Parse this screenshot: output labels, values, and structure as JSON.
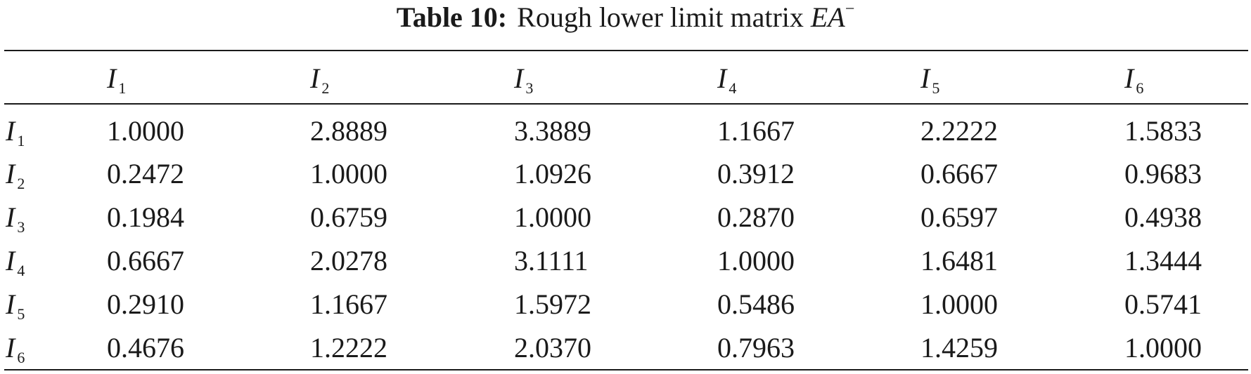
{
  "caption": {
    "label": "Table 10:",
    "text": "Rough lower limit matrix",
    "symbol": "EA",
    "symbol_sup": "−"
  },
  "header": [
    {
      "var": "I",
      "sub": "1"
    },
    {
      "var": "I",
      "sub": "2"
    },
    {
      "var": "I",
      "sub": "3"
    },
    {
      "var": "I",
      "sub": "4"
    },
    {
      "var": "I",
      "sub": "5"
    },
    {
      "var": "I",
      "sub": "6"
    }
  ],
  "rows": [
    {
      "label": {
        "var": "I",
        "sub": "1"
      },
      "values": [
        "1.0000",
        "2.8889",
        "3.3889",
        "1.1667",
        "2.2222",
        "1.5833"
      ]
    },
    {
      "label": {
        "var": "I",
        "sub": "2"
      },
      "values": [
        "0.2472",
        "1.0000",
        "1.0926",
        "0.3912",
        "0.6667",
        "0.9683"
      ]
    },
    {
      "label": {
        "var": "I",
        "sub": "3"
      },
      "values": [
        "0.1984",
        "0.6759",
        "1.0000",
        "0.2870",
        "0.6597",
        "0.4938"
      ]
    },
    {
      "label": {
        "var": "I",
        "sub": "4"
      },
      "values": [
        "0.6667",
        "2.0278",
        "3.1111",
        "1.0000",
        "1.6481",
        "1.3444"
      ]
    },
    {
      "label": {
        "var": "I",
        "sub": "5"
      },
      "values": [
        "0.2910",
        "1.1667",
        "1.5972",
        "0.5486",
        "1.0000",
        "0.5741"
      ]
    },
    {
      "label": {
        "var": "I",
        "sub": "6"
      },
      "values": [
        "0.4676",
        "1.2222",
        "2.0370",
        "0.7963",
        "1.4259",
        "1.0000"
      ]
    }
  ]
}
